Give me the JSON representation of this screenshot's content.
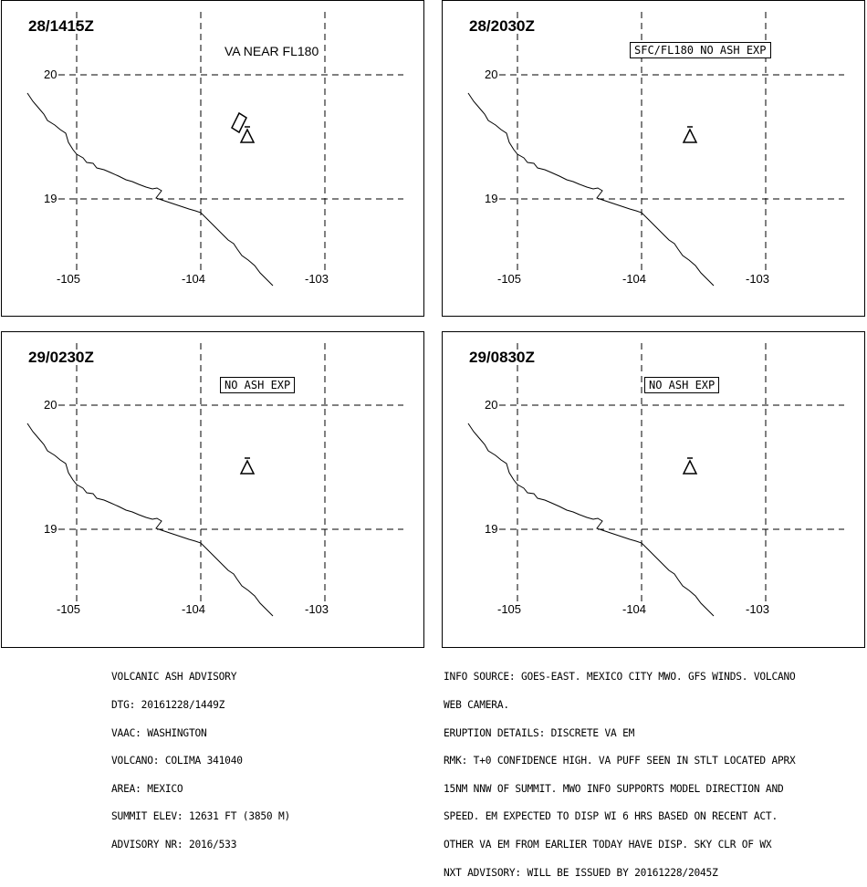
{
  "panels": [
    {
      "time": "28/1415Z",
      "note": "VA NEAR FL180",
      "note_boxed": false,
      "ash_polygon": true
    },
    {
      "time": "28/2030Z",
      "note": "SFC/FL180 NO ASH EXP",
      "note_boxed": true,
      "ash_polygon": false
    },
    {
      "time": "29/0230Z",
      "note": "NO ASH EXP",
      "note_boxed": true,
      "ash_polygon": false
    },
    {
      "time": "29/0830Z",
      "note": "NO ASH EXP",
      "note_boxed": true,
      "ash_polygon": false
    }
  ],
  "lat_labels": [
    "20",
    "19"
  ],
  "lon_labels": [
    "-105",
    "-104",
    "-103"
  ],
  "volcano_icon": "volcano-triangle-icon",
  "advisory_left": [
    "VOLCANIC ASH ADVISORY",
    "DTG: 20161228/1449Z",
    "VAAC: WASHINGTON",
    "VOLCANO: COLIMA 341040",
    "AREA: MEXICO",
    "SUMMIT ELEV: 12631 FT (3850 M)",
    "ADVISORY NR: 2016/533"
  ],
  "advisory_right": [
    "INFO SOURCE: GOES-EAST. MEXICO CITY MWO. GFS WINDS. VOLCANO",
    "WEB CAMERA.",
    "ERUPTION DETAILS: DISCRETE VA EM",
    "RMK: T+0 CONFIDENCE HIGH. VA PUFF SEEN IN STLT LOCATED APRX",
    "15NM NNW OF SUMMIT. MWO INFO SUPPORTS MODEL DIRECTION AND",
    "SPEED. EM EXPECTED TO DISP WI 6 HRS BASED ON RECENT ACT.",
    "OTHER VA EM FROM EARLIER TODAY HAVE DISP. SKY CLR OF WX",
    "NXT ADVISORY: WILL BE ISSUED BY 20161228/2045Z"
  ]
}
